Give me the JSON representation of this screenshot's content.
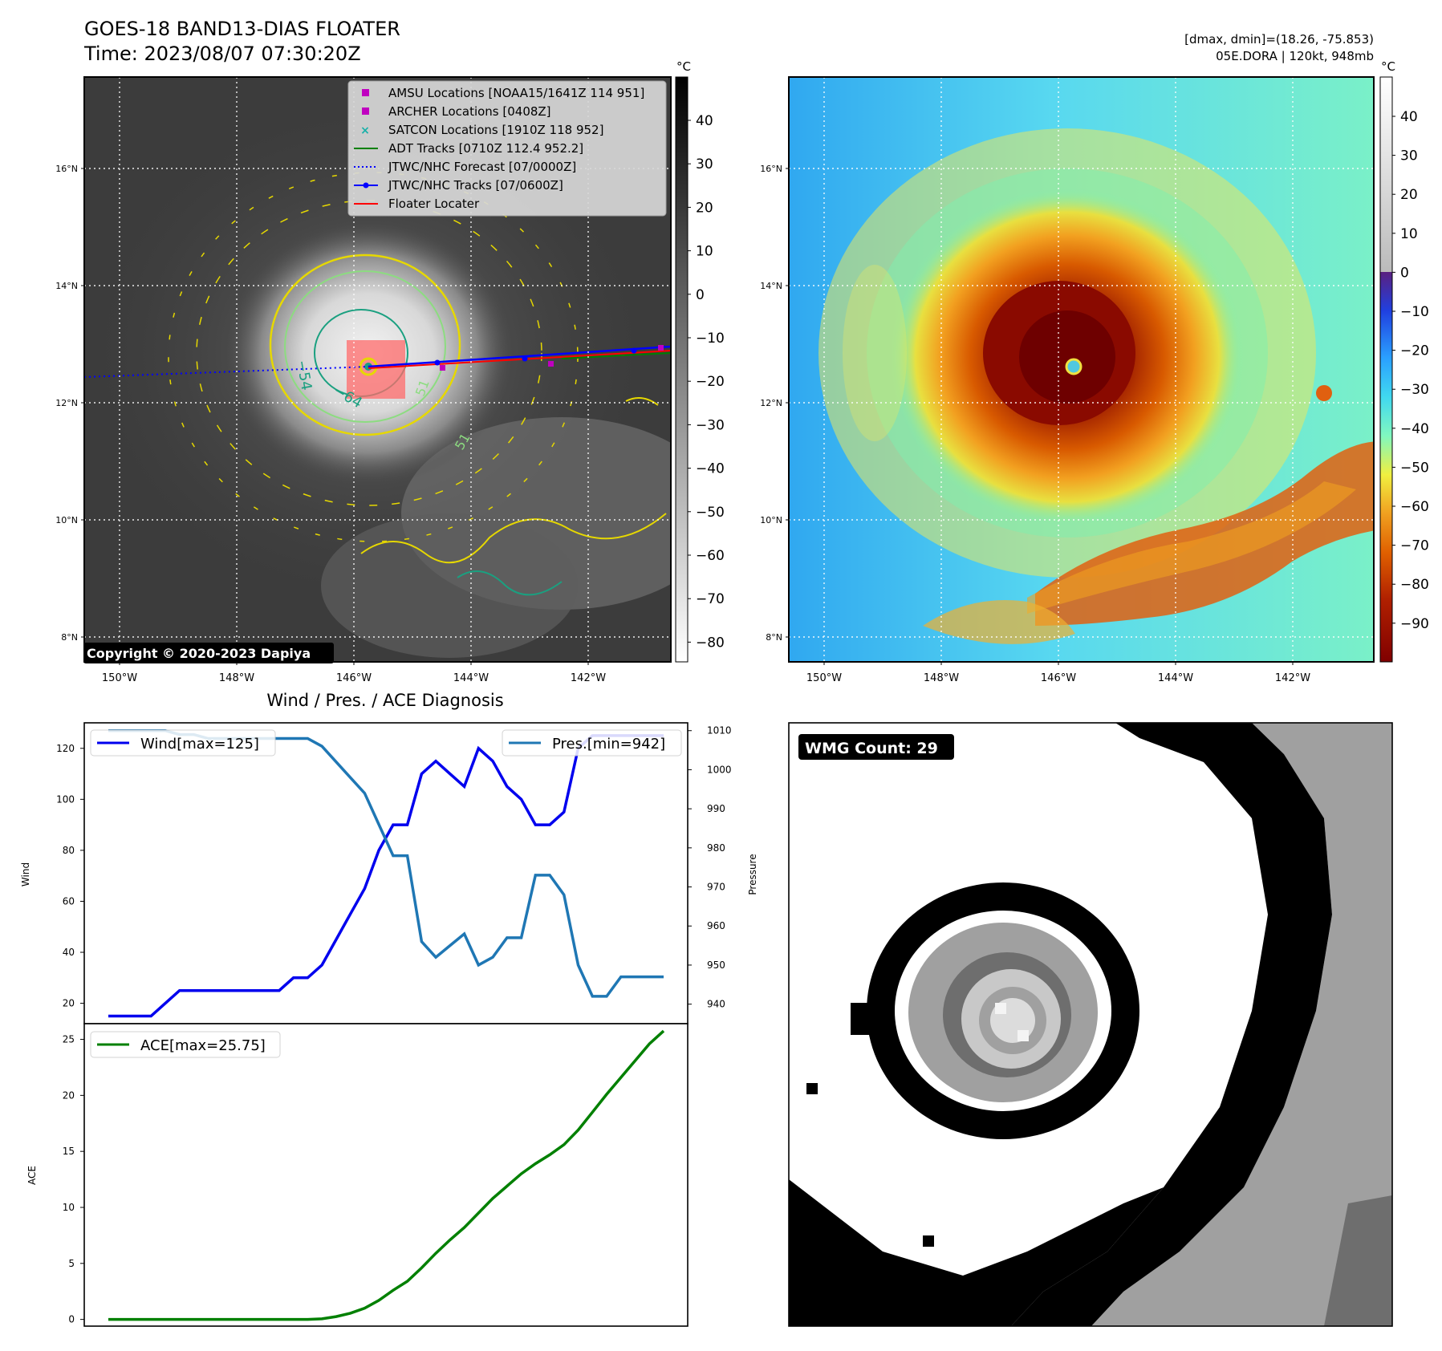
{
  "header": {
    "title_line1": "GOES-18 BAND13-DIAS FLOATER",
    "title_line2": "Time: 2023/08/07 07:30:20Z",
    "right_line1": "[dmax, dmin]=(18.26, -75.853)",
    "right_line2": "05E.DORA | 120kt, 948mb"
  },
  "ir_panel": {
    "copyright": "Copyright © 2020-2023 Dapiya",
    "lat_ticks": [
      "16°N",
      "14°N",
      "12°N",
      "10°N",
      "8°N"
    ],
    "lon_ticks": [
      "150°W",
      "148°W",
      "146°W",
      "144°W",
      "142°W"
    ],
    "contour_labels": [
      "−54",
      "−64",
      "51",
      "51"
    ],
    "legend": [
      {
        "label": "AMSU Locations [NOAA15/1641Z 114 951]",
        "color": "#c000c0",
        "marker": "square"
      },
      {
        "label": "ARCHER Locations [0408Z]",
        "color": "#c000c0",
        "marker": "square"
      },
      {
        "label": "SATCON Locations [1910Z 118 952]",
        "color": "#17b0a8",
        "marker": "x"
      },
      {
        "label": "ADT Tracks [0710Z 112.4 952.2]",
        "color": "#008000",
        "marker": "line"
      },
      {
        "label": "JTWC/NHC Forecast [07/0000Z]",
        "color": "#0000ff",
        "marker": "dotted"
      },
      {
        "label": "JTWC/NHC Tracks [07/0600Z]",
        "color": "#0000ff",
        "marker": "line-dot"
      },
      {
        "label": "Floater Locater",
        "color": "#ff0000",
        "marker": "line"
      }
    ],
    "colorbar": {
      "unit": "°C",
      "ticks": [
        "40",
        "30",
        "20",
        "10",
        "0",
        "−10",
        "−20",
        "−30",
        "−40",
        "−50",
        "−60",
        "−70",
        "−80"
      ]
    }
  },
  "color_panel": {
    "lat_ticks": [
      "16°N",
      "14°N",
      "12°N",
      "10°N",
      "8°N"
    ],
    "lon_ticks": [
      "150°W",
      "148°W",
      "146°W",
      "144°W",
      "142°W"
    ],
    "colorbar": {
      "unit": "°C",
      "ticks": [
        "40",
        "30",
        "20",
        "10",
        "0",
        "−10",
        "−20",
        "−30",
        "−40",
        "−50",
        "−60",
        "−70",
        "−80",
        "−90"
      ]
    }
  },
  "wmg_panel": {
    "badge": "WMG Count: 29"
  },
  "chart_data": [
    {
      "type": "line",
      "title": "Wind / Pres. / ACE Diagnosis",
      "ylabel": "Wind",
      "y2label": "Pressure",
      "ylim": [
        12,
        130
      ],
      "y2lim": [
        935,
        1012
      ],
      "y_ticks": [
        20,
        40,
        60,
        80,
        100,
        120
      ],
      "y2_ticks": [
        940,
        950,
        960,
        970,
        980,
        990,
        1000,
        1010
      ],
      "series": [
        {
          "name": "Wind[max=125]",
          "color": "#0000ee",
          "axis": "left",
          "values": [
            15,
            15,
            15,
            15,
            20,
            25,
            25,
            25,
            25,
            25,
            25,
            25,
            25,
            30,
            30,
            35,
            45,
            55,
            65,
            80,
            90,
            90,
            110,
            115,
            110,
            105,
            120,
            115,
            105,
            100,
            90,
            90,
            95,
            120,
            125,
            125,
            125,
            125,
            125,
            125
          ]
        },
        {
          "name": "Pres.[min=942]",
          "color": "#1f77b4",
          "axis": "right",
          "values": [
            1010,
            1010,
            1010,
            1010,
            1010,
            1009,
            1009,
            1008,
            1008,
            1008,
            1008,
            1008,
            1008,
            1008,
            1008,
            1006,
            1002,
            998,
            994,
            986,
            978,
            978,
            956,
            952,
            955,
            958,
            950,
            952,
            957,
            957,
            973,
            973,
            968,
            950,
            942,
            942,
            947,
            947,
            947,
            947
          ]
        }
      ]
    },
    {
      "type": "line",
      "ylabel": "ACE",
      "ylim": [
        -0.6,
        26.4
      ],
      "y_ticks": [
        0,
        5,
        10,
        15,
        20,
        25
      ],
      "series": [
        {
          "name": "ACE[max=25.75]",
          "color": "#008000",
          "values": [
            0,
            0,
            0,
            0,
            0,
            0,
            0,
            0,
            0,
            0,
            0,
            0,
            0,
            0,
            0,
            0.05,
            0.25,
            0.55,
            1.0,
            1.7,
            2.6,
            3.4,
            4.6,
            5.9,
            7.1,
            8.2,
            9.5,
            10.8,
            11.9,
            13.0,
            13.9,
            14.7,
            15.6,
            16.9,
            18.5,
            20.1,
            21.6,
            23.1,
            24.6,
            25.75
          ]
        }
      ]
    }
  ]
}
